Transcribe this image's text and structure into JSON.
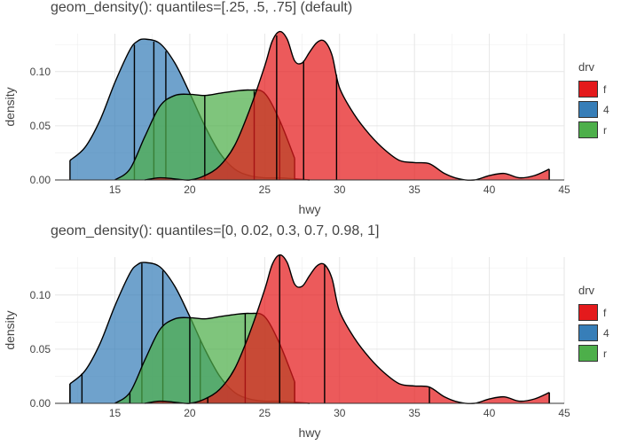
{
  "colors": {
    "f": "#e41a1c",
    "4": "#377eb8",
    "r": "#4daf4a"
  },
  "chart_data": [
    {
      "type": "area",
      "title": "geom_density(): quantiles=[.25, .5, .75] (default)",
      "xlabel": "hwy",
      "ylabel": "density",
      "xlim": [
        11,
        45
      ],
      "ylim": [
        0,
        0.135
      ],
      "x_ticks": [
        15,
        20,
        25,
        30,
        35,
        40,
        45
      ],
      "y_ticks": [
        0.0,
        0.05,
        0.1
      ],
      "y_tick_labels": [
        "0.00",
        "0.05",
        "0.10"
      ],
      "grid": true,
      "legend": {
        "title": "drv",
        "position": "right",
        "entries": [
          "f",
          "4",
          "r"
        ]
      },
      "series": [
        {
          "name": "4",
          "range": [
            12,
            28
          ],
          "quantiles": [
            16.3,
            17.6,
            18.4
          ],
          "points": [
            [
              12,
              0.018
            ],
            [
              13,
              0.03
            ],
            [
              14,
              0.055
            ],
            [
              15,
              0.09
            ],
            [
              16,
              0.12
            ],
            [
              16.5,
              0.128
            ],
            [
              17,
              0.13
            ],
            [
              18,
              0.126
            ],
            [
              19,
              0.108
            ],
            [
              20,
              0.08
            ],
            [
              21,
              0.05
            ],
            [
              22,
              0.025
            ],
            [
              23,
              0.01
            ],
            [
              24,
              0.004
            ],
            [
              25,
              0.002
            ],
            [
              26,
              0.002
            ],
            [
              27,
              0.001
            ],
            [
              28,
              0.0
            ]
          ]
        },
        {
          "name": "r",
          "range": [
            15,
            27
          ],
          "quantiles": [
            21.0,
            24.3,
            26.0
          ],
          "points": [
            [
              15,
              0.0
            ],
            [
              16,
              0.01
            ],
            [
              17,
              0.04
            ],
            [
              18,
              0.068
            ],
            [
              19,
              0.078
            ],
            [
              20,
              0.079
            ],
            [
              21,
              0.078
            ],
            [
              22,
              0.08
            ],
            [
              23,
              0.082
            ],
            [
              24,
              0.083
            ],
            [
              25,
              0.08
            ],
            [
              26,
              0.055
            ],
            [
              27,
              0.02
            ]
          ]
        },
        {
          "name": "f",
          "range": [
            17,
            44
          ],
          "quantiles": [
            25.8,
            27.6,
            29.8
          ],
          "points": [
            [
              17,
              0.0
            ],
            [
              18,
              0.002
            ],
            [
              19,
              0.001
            ],
            [
              20,
              0.0
            ],
            [
              21,
              0.004
            ],
            [
              22,
              0.013
            ],
            [
              23,
              0.032
            ],
            [
              24,
              0.065
            ],
            [
              25,
              0.105
            ],
            [
              25.5,
              0.128
            ],
            [
              26,
              0.137
            ],
            [
              26.5,
              0.13
            ],
            [
              27,
              0.11
            ],
            [
              27.5,
              0.108
            ],
            [
              28,
              0.118
            ],
            [
              28.5,
              0.127
            ],
            [
              29,
              0.128
            ],
            [
              29.5,
              0.115
            ],
            [
              30,
              0.085
            ],
            [
              31,
              0.06
            ],
            [
              32,
              0.042
            ],
            [
              33,
              0.028
            ],
            [
              34,
              0.018
            ],
            [
              35,
              0.016
            ],
            [
              36,
              0.015
            ],
            [
              37,
              0.006
            ],
            [
              38,
              0.001
            ],
            [
              39,
              0.0
            ],
            [
              40,
              0.004
            ],
            [
              41,
              0.006
            ],
            [
              42,
              0.002
            ],
            [
              43,
              0.004
            ],
            [
              44,
              0.01
            ]
          ]
        }
      ]
    },
    {
      "type": "area",
      "title": "geom_density(): quantiles=[0, 0.02, 0.3, 0.7, 0.98, 1]",
      "xlabel": "hwy",
      "ylabel": "density",
      "xlim": [
        11,
        45
      ],
      "ylim": [
        0,
        0.135
      ],
      "x_ticks": [
        15,
        20,
        25,
        30,
        35,
        40,
        45
      ],
      "y_ticks": [
        0.0,
        0.05,
        0.1
      ],
      "y_tick_labels": [
        "0.00",
        "0.05",
        "0.10"
      ],
      "grid": true,
      "legend": {
        "title": "drv",
        "position": "right",
        "entries": [
          "f",
          "4",
          "r"
        ]
      },
      "series": [
        {
          "name": "4",
          "range": [
            12,
            28
          ],
          "quantiles": [
            12.0,
            12.8,
            16.8,
            18.2,
            20.7,
            28.0
          ],
          "points": [
            [
              12,
              0.018
            ],
            [
              13,
              0.03
            ],
            [
              14,
              0.055
            ],
            [
              15,
              0.09
            ],
            [
              16,
              0.12
            ],
            [
              16.5,
              0.128
            ],
            [
              17,
              0.13
            ],
            [
              18,
              0.126
            ],
            [
              19,
              0.108
            ],
            [
              20,
              0.08
            ],
            [
              21,
              0.05
            ],
            [
              22,
              0.025
            ],
            [
              23,
              0.01
            ],
            [
              24,
              0.004
            ],
            [
              25,
              0.002
            ],
            [
              26,
              0.002
            ],
            [
              27,
              0.001
            ],
            [
              28,
              0.0
            ]
          ]
        },
        {
          "name": "r",
          "range": [
            15,
            27
          ],
          "quantiles": [
            15.0,
            16.0,
            20.0,
            23.7,
            26.0,
            27.0
          ],
          "points": [
            [
              15,
              0.0
            ],
            [
              16,
              0.01
            ],
            [
              17,
              0.04
            ],
            [
              18,
              0.068
            ],
            [
              19,
              0.078
            ],
            [
              20,
              0.079
            ],
            [
              21,
              0.078
            ],
            [
              22,
              0.08
            ],
            [
              23,
              0.082
            ],
            [
              24,
              0.083
            ],
            [
              25,
              0.08
            ],
            [
              26,
              0.055
            ],
            [
              27,
              0.02
            ]
          ]
        },
        {
          "name": "f",
          "range": [
            17,
            44
          ],
          "quantiles": [
            17.0,
            21.2,
            26.0,
            29.0,
            36.0,
            44.0
          ],
          "points": [
            [
              17,
              0.0
            ],
            [
              18,
              0.002
            ],
            [
              19,
              0.001
            ],
            [
              20,
              0.0
            ],
            [
              21,
              0.004
            ],
            [
              22,
              0.013
            ],
            [
              23,
              0.032
            ],
            [
              24,
              0.065
            ],
            [
              25,
              0.105
            ],
            [
              25.5,
              0.128
            ],
            [
              26,
              0.137
            ],
            [
              26.5,
              0.13
            ],
            [
              27,
              0.11
            ],
            [
              27.5,
              0.108
            ],
            [
              28,
              0.118
            ],
            [
              28.5,
              0.127
            ],
            [
              29,
              0.128
            ],
            [
              29.5,
              0.115
            ],
            [
              30,
              0.085
            ],
            [
              31,
              0.06
            ],
            [
              32,
              0.042
            ],
            [
              33,
              0.028
            ],
            [
              34,
              0.018
            ],
            [
              35,
              0.016
            ],
            [
              36,
              0.015
            ],
            [
              37,
              0.006
            ],
            [
              38,
              0.001
            ],
            [
              39,
              0.0
            ],
            [
              40,
              0.004
            ],
            [
              41,
              0.006
            ],
            [
              42,
              0.002
            ],
            [
              43,
              0.004
            ],
            [
              44,
              0.01
            ]
          ]
        }
      ]
    }
  ]
}
